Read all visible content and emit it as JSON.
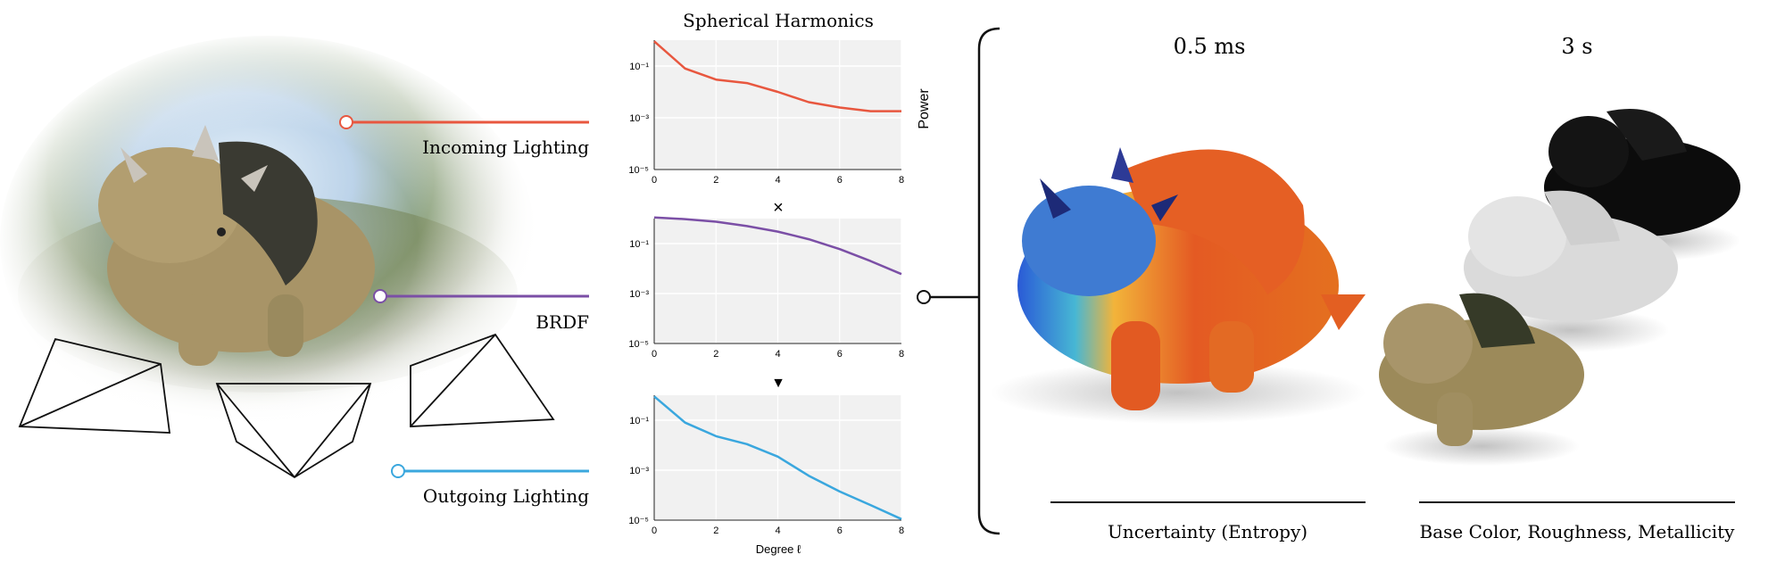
{
  "figure": {
    "spherical_harmonics_title": "Spherical Harmonics",
    "left_labels": {
      "incoming": "Incoming Lighting",
      "brdf": "BRDF",
      "outgoing": "Outgoing Lighting"
    },
    "operators": {
      "multiply": "×",
      "result": "▼"
    },
    "right": {
      "time_fast": "0.5 ms",
      "time_slow": "3 s",
      "caption_fast": "Uncertainty (Entropy)",
      "caption_slow": "Base Color, Roughness, Metallicity"
    },
    "colors": {
      "incoming": "#e8573f",
      "brdf": "#7b4fa6",
      "outgoing": "#3aa7de",
      "plot_bg": "#f1f1f1"
    }
  },
  "chart_data": [
    {
      "type": "line",
      "xlabel": "",
      "ylabel": "Power",
      "x": [
        0,
        1,
        2,
        3,
        4,
        5,
        6,
        7,
        8
      ],
      "y_scale": "log",
      "ylim": [
        1e-05,
        1
      ],
      "y_ticks": [
        "10^-1",
        "10^-3",
        "10^-5"
      ],
      "x_ticks": [
        "0",
        "2",
        "4",
        "6",
        "8"
      ],
      "series": [
        {
          "values": [
            0.9,
            0.08,
            0.03,
            0.022,
            0.01,
            0.004,
            0.0025,
            0.0018,
            0.0018
          ]
        }
      ],
      "grid": true
    },
    {
      "type": "line",
      "xlabel": "",
      "ylabel": "",
      "x": [
        0,
        1,
        2,
        3,
        4,
        5,
        6,
        7,
        8
      ],
      "y_scale": "log",
      "ylim": [
        1e-05,
        1
      ],
      "y_ticks": [
        "10^-1",
        "10^-3",
        "10^-5"
      ],
      "x_ticks": [
        "0",
        "2",
        "4",
        "6",
        "8"
      ],
      "series": [
        {
          "values": [
            1.1,
            0.95,
            0.75,
            0.5,
            0.3,
            0.15,
            0.06,
            0.02,
            0.006
          ]
        }
      ],
      "grid": true
    },
    {
      "type": "line",
      "xlabel": "Degree ℓ",
      "ylabel": "",
      "x": [
        0,
        1,
        2,
        3,
        4,
        5,
        6,
        7,
        8
      ],
      "y_scale": "log",
      "ylim": [
        1e-05,
        1
      ],
      "y_ticks": [
        "10^-1",
        "10^-3",
        "10^-5"
      ],
      "x_ticks": [
        "0",
        "2",
        "4",
        "6",
        "8"
      ],
      "series": [
        {
          "values": [
            0.9,
            0.08,
            0.023,
            0.011,
            0.0035,
            0.0006,
            0.00014,
            4e-05,
            1.1e-05
          ]
        }
      ],
      "grid": true
    }
  ]
}
